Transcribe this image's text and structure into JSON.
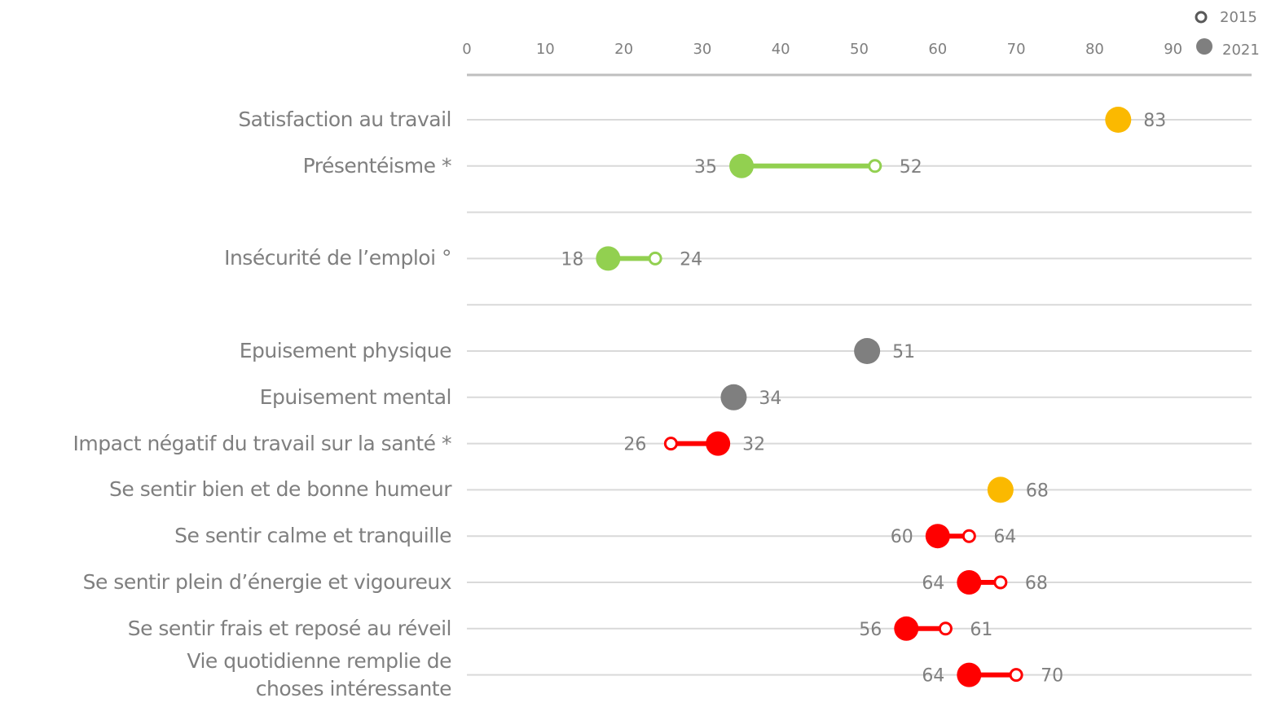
{
  "chart_data": {
    "type": "dumbbell",
    "categories": [
      "Satisfaction au travail",
      "Présentéisme *",
      null,
      "Insécurité de l’emploi  °",
      null,
      "Epuisement physique",
      "Epuisement mental",
      "Impact négatif du travail sur la santé *",
      "Se sentir bien et de bonne humeur",
      "Se sentir calme et tranquille",
      "Se sentir plein d’énergie et vigoureux",
      "Se sentir frais et reposé au réveil",
      "Vie quotidienne remplie de \nchoses intéressante"
    ],
    "colors": [
      "#fbb900",
      "#92d050",
      null,
      "#92d050",
      null,
      "#7f7f7f",
      "#7f7f7f",
      "#ff0000",
      "#fbb900",
      "#ff0000",
      "#ff0000",
      "#ff0000",
      "#ff0000"
    ],
    "series": [
      {
        "name": "2015",
        "color": "#595959",
        "values": [
          null,
          52,
          null,
          24,
          null,
          null,
          null,
          26,
          null,
          64,
          68,
          61,
          70
        ]
      },
      {
        "name": "2021",
        "color": "#7f7f7f",
        "values": [
          83,
          35,
          null,
          18,
          null,
          51,
          34,
          32,
          68,
          60,
          64,
          56,
          64
        ]
      }
    ],
    "xlim": [
      0,
      100
    ],
    "xticks": [
      0,
      10,
      20,
      30,
      40,
      50,
      60,
      70,
      80,
      90
    ],
    "legend": "top-right"
  }
}
